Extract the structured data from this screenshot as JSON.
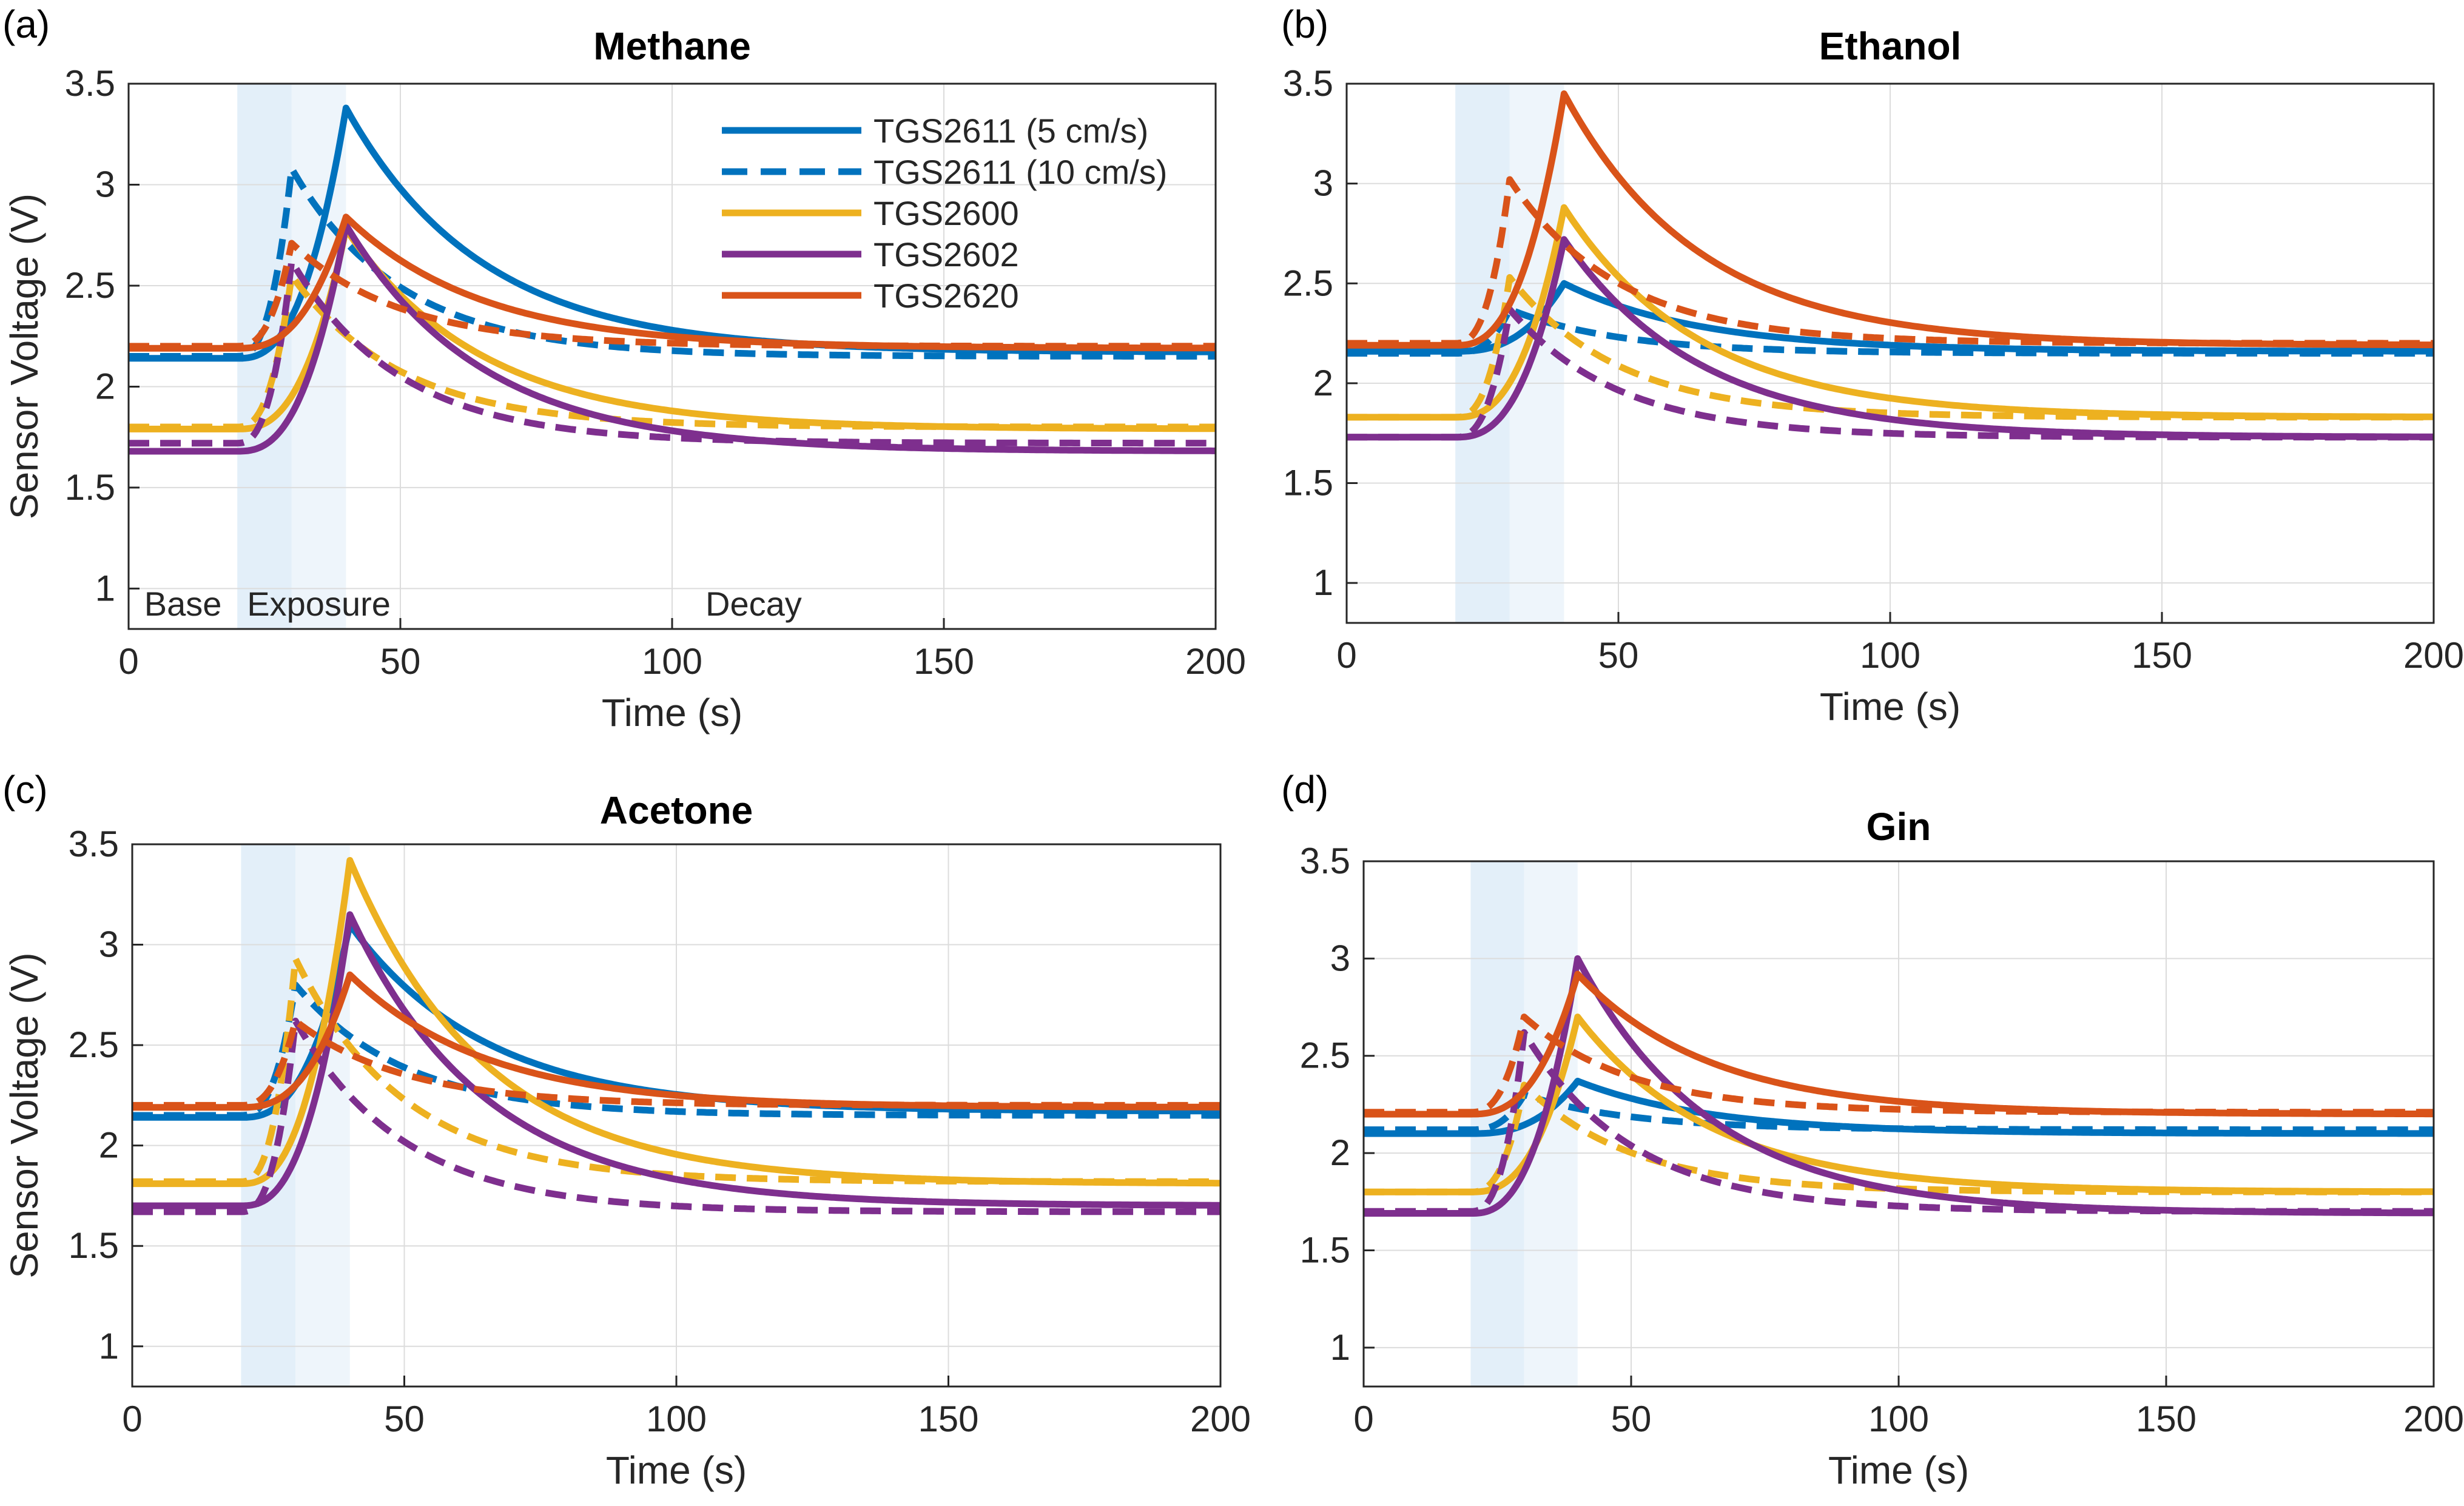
{
  "figure": {
    "xlabel": "Time (s)",
    "ylabel": "Sensor Voltage (V)",
    "xlim": [
      0,
      200
    ],
    "ylim": [
      0.8,
      3.5
    ],
    "xticks": [
      0,
      50,
      100,
      150,
      200
    ],
    "yticks": [
      1,
      1.5,
      2,
      2.5,
      3,
      3.5
    ],
    "phases": {
      "base_end": 20,
      "exposure_fast_end": 30,
      "exposure_slow_end": 40
    },
    "phase_labels": [
      {
        "text": "Base",
        "x": 10
      },
      {
        "text": "Exposure",
        "x": 35
      },
      {
        "text": "Decay",
        "x": 115
      }
    ],
    "legend": [
      {
        "label": "TGS2611 (5 cm/s)",
        "color": "#0072BD",
        "dash": false
      },
      {
        "label": "TGS2611 (10 cm/s)",
        "color": "#0072BD",
        "dash": true
      },
      {
        "label": "TGS2600",
        "color": "#EDB120",
        "dash": false
      },
      {
        "label": "TGS2602",
        "color": "#7E2F8E",
        "dash": false
      },
      {
        "label": "TGS2620",
        "color": "#D95319",
        "dash": false
      }
    ]
  },
  "chart_data": [
    {
      "type": "line",
      "panel": "(a)",
      "title": "Methane",
      "xlabel": "Time (s)",
      "ylabel": "Sensor Voltage (V)",
      "xlim": [
        0,
        200
      ],
      "ylim": [
        0.8,
        3.5
      ],
      "series": [
        {
          "name": "TGS2611 (5 cm/s)",
          "sensor": "TGS2611",
          "color": "#0072BD",
          "base": 2.14,
          "peak": 3.38,
          "peak_time": 40,
          "end": 2.17
        },
        {
          "name": "TGS2611 (10 cm/s)",
          "sensor": "TGS2611",
          "color": "#0072BD",
          "dashed": true,
          "base": 2.15,
          "peak": 3.08,
          "peak_time": 30,
          "end": 2.15
        },
        {
          "name": "TGS2600 (5 cm/s)",
          "sensor": "TGS2600",
          "color": "#EDB120",
          "base": 1.79,
          "peak": 2.78,
          "peak_time": 40,
          "end": 1.79
        },
        {
          "name": "TGS2600 (10 cm/s)",
          "sensor": "TGS2600",
          "color": "#EDB120",
          "dashed": true,
          "base": 1.8,
          "peak": 2.55,
          "peak_time": 30,
          "end": 1.8
        },
        {
          "name": "TGS2602 (5 cm/s)",
          "sensor": "TGS2602",
          "color": "#7E2F8E",
          "base": 1.68,
          "peak": 2.8,
          "peak_time": 40,
          "end": 1.68
        },
        {
          "name": "TGS2602 (10 cm/s)",
          "sensor": "TGS2602",
          "color": "#7E2F8E",
          "dashed": true,
          "base": 1.72,
          "peak": 2.62,
          "peak_time": 30,
          "end": 1.72
        },
        {
          "name": "TGS2620 (5 cm/s)",
          "sensor": "TGS2620",
          "color": "#D95319",
          "base": 2.19,
          "peak": 2.84,
          "peak_time": 40,
          "end": 2.19
        },
        {
          "name": "TGS2620 (10 cm/s)",
          "sensor": "TGS2620",
          "color": "#D95319",
          "dashed": true,
          "base": 2.2,
          "peak": 2.71,
          "peak_time": 30,
          "end": 2.2
        }
      ]
    },
    {
      "type": "line",
      "panel": "(b)",
      "title": "Ethanol",
      "xlabel": "Time (s)",
      "ylabel": "",
      "xlim": [
        0,
        200
      ],
      "ylim": [
        0.8,
        3.5
      ],
      "series": [
        {
          "name": "TGS2611 (5 cm/s)",
          "sensor": "TGS2611",
          "color": "#0072BD",
          "base": 2.16,
          "peak": 2.5,
          "peak_time": 40,
          "end": 2.16
        },
        {
          "name": "TGS2611 (10 cm/s)",
          "sensor": "TGS2611",
          "color": "#0072BD",
          "dashed": true,
          "base": 2.15,
          "peak": 2.37,
          "peak_time": 30,
          "end": 2.15
        },
        {
          "name": "TGS2600 (5 cm/s)",
          "sensor": "TGS2600",
          "color": "#EDB120",
          "base": 1.83,
          "peak": 2.88,
          "peak_time": 40,
          "end": 1.83
        },
        {
          "name": "TGS2600 (10 cm/s)",
          "sensor": "TGS2600",
          "color": "#EDB120",
          "dashed": true,
          "base": 1.83,
          "peak": 2.53,
          "peak_time": 30,
          "end": 1.83
        },
        {
          "name": "TGS2602 (5 cm/s)",
          "sensor": "TGS2602",
          "color": "#7E2F8E",
          "base": 1.73,
          "peak": 2.72,
          "peak_time": 40,
          "end": 1.73
        },
        {
          "name": "TGS2602 (10 cm/s)",
          "sensor": "TGS2602",
          "color": "#7E2F8E",
          "dashed": true,
          "base": 1.73,
          "peak": 2.37,
          "peak_time": 30,
          "end": 1.73
        },
        {
          "name": "TGS2620 (5 cm/s)",
          "sensor": "TGS2620",
          "color": "#D95319",
          "base": 2.19,
          "peak": 3.45,
          "peak_time": 40,
          "end": 2.19
        },
        {
          "name": "TGS2620 (10 cm/s)",
          "sensor": "TGS2620",
          "color": "#D95319",
          "dashed": true,
          "base": 2.2,
          "peak": 3.02,
          "peak_time": 30,
          "end": 2.2
        }
      ]
    },
    {
      "type": "line",
      "panel": "(c)",
      "title": "Acetone",
      "xlabel": "Time (s)",
      "ylabel": "Sensor Voltage (V)",
      "xlim": [
        0,
        200
      ],
      "ylim": [
        0.8,
        3.5
      ],
      "series": [
        {
          "name": "TGS2611 (5 cm/s)",
          "sensor": "TGS2611",
          "color": "#0072BD",
          "base": 2.14,
          "peak": 3.1,
          "peak_time": 40,
          "end": 2.17
        },
        {
          "name": "TGS2611 (10 cm/s)",
          "sensor": "TGS2611",
          "color": "#0072BD",
          "dashed": true,
          "base": 2.15,
          "peak": 2.8,
          "peak_time": 30,
          "end": 2.15
        },
        {
          "name": "TGS2600 (5 cm/s)",
          "sensor": "TGS2600",
          "color": "#EDB120",
          "base": 1.81,
          "peak": 3.42,
          "peak_time": 40,
          "end": 1.81
        },
        {
          "name": "TGS2600 (10 cm/s)",
          "sensor": "TGS2600",
          "color": "#EDB120",
          "dashed": true,
          "base": 1.82,
          "peak": 2.93,
          "peak_time": 30,
          "end": 1.82
        },
        {
          "name": "TGS2602 (5 cm/s)",
          "sensor": "TGS2602",
          "color": "#7E2F8E",
          "base": 1.7,
          "peak": 3.15,
          "peak_time": 40,
          "end": 1.7
        },
        {
          "name": "TGS2602 (10 cm/s)",
          "sensor": "TGS2602",
          "color": "#7E2F8E",
          "dashed": true,
          "base": 1.67,
          "peak": 2.62,
          "peak_time": 30,
          "end": 1.67
        },
        {
          "name": "TGS2620 (5 cm/s)",
          "sensor": "TGS2620",
          "color": "#D95319",
          "base": 2.19,
          "peak": 2.85,
          "peak_time": 40,
          "end": 2.19
        },
        {
          "name": "TGS2620 (10 cm/s)",
          "sensor": "TGS2620",
          "color": "#D95319",
          "dashed": true,
          "base": 2.2,
          "peak": 2.62,
          "peak_time": 30,
          "end": 2.2
        }
      ]
    },
    {
      "type": "line",
      "panel": "(d)",
      "title": "Gin",
      "xlabel": "Time (s)",
      "ylabel": "",
      "xlim": [
        0,
        200
      ],
      "ylim": [
        0.8,
        3.5
      ],
      "series": [
        {
          "name": "TGS2611 (5 cm/s)",
          "sensor": "TGS2611",
          "color": "#0072BD",
          "base": 2.1,
          "peak": 2.37,
          "peak_time": 40,
          "end": 2.1
        },
        {
          "name": "TGS2611 (10 cm/s)",
          "sensor": "TGS2611",
          "color": "#0072BD",
          "dashed": true,
          "base": 2.12,
          "peak": 2.3,
          "peak_time": 30,
          "end": 2.12
        },
        {
          "name": "TGS2600 (5 cm/s)",
          "sensor": "TGS2600",
          "color": "#EDB120",
          "base": 1.8,
          "peak": 2.7,
          "peak_time": 40,
          "end": 1.8
        },
        {
          "name": "TGS2600 (10 cm/s)",
          "sensor": "TGS2600",
          "color": "#EDB120",
          "dashed": true,
          "base": 1.8,
          "peak": 2.35,
          "peak_time": 30,
          "end": 1.8
        },
        {
          "name": "TGS2602 (5 cm/s)",
          "sensor": "TGS2602",
          "color": "#7E2F8E",
          "base": 1.69,
          "peak": 3.0,
          "peak_time": 40,
          "end": 1.69
        },
        {
          "name": "TGS2602 (10 cm/s)",
          "sensor": "TGS2602",
          "color": "#7E2F8E",
          "dashed": true,
          "base": 1.7,
          "peak": 2.62,
          "peak_time": 30,
          "end": 1.7
        },
        {
          "name": "TGS2620 (5 cm/s)",
          "sensor": "TGS2620",
          "color": "#D95319",
          "base": 2.2,
          "peak": 2.92,
          "peak_time": 40,
          "end": 2.2
        },
        {
          "name": "TGS2620 (10 cm/s)",
          "sensor": "TGS2620",
          "color": "#D95319",
          "dashed": true,
          "base": 2.21,
          "peak": 2.7,
          "peak_time": 30,
          "end": 2.21
        }
      ]
    }
  ]
}
